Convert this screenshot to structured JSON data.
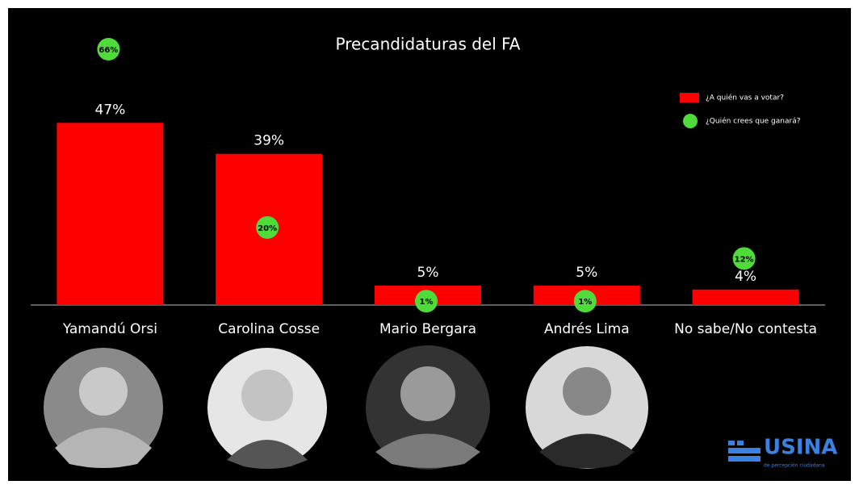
{
  "chart_data": {
    "type": "bar",
    "title": "Precandidaturas del FA",
    "categories": [
      "Yamandú Orsi",
      "Carolina Cosse",
      "Mario Bergara",
      "Andrés Lima",
      "No sabe/No contesta"
    ],
    "series": [
      {
        "name": "¿A quién vas a votar?",
        "color": "#ff0000",
        "marker": "bar",
        "values": [
          47,
          39,
          5,
          5,
          4
        ],
        "value_labels": [
          "47%",
          "39%",
          "5%",
          "5%",
          "4%"
        ]
      },
      {
        "name": "¿Quién crees que ganará?",
        "color": "#4fdc3a",
        "marker": "dot",
        "values": [
          66,
          20,
          1,
          1,
          12
        ],
        "value_labels": [
          "66%",
          "20%",
          "1%",
          "1%",
          "12%"
        ]
      }
    ],
    "legend": "top-right"
  },
  "logo": {
    "name": "USINA",
    "tagline": "de percepción ciudadana"
  }
}
